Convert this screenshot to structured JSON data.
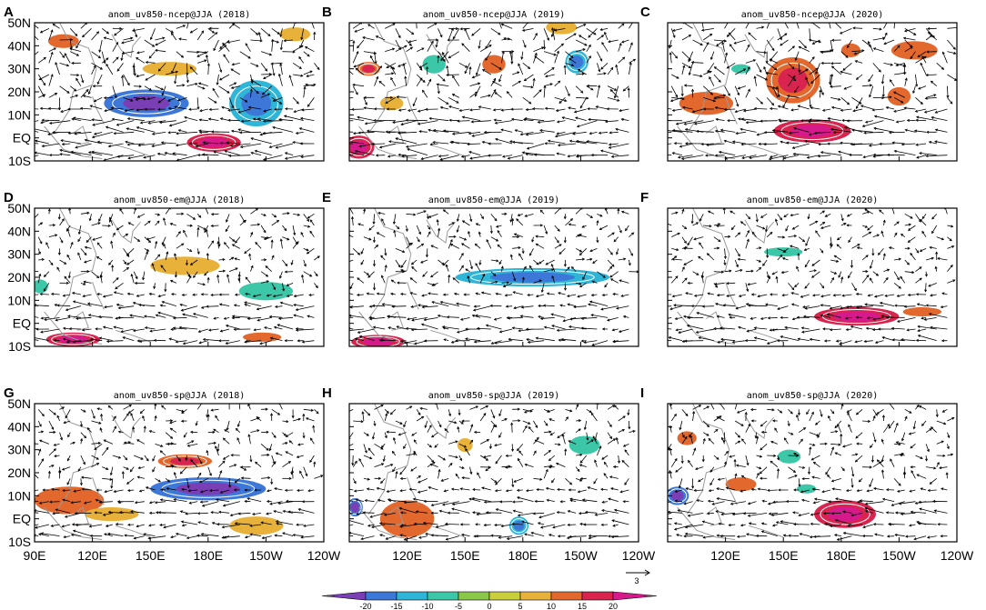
{
  "chart_data": {
    "type": "heatmap",
    "description_units": "850 hPa wind anomaly vectors with shaded anomaly field",
    "lat_labels": [
      "50N",
      "40N",
      "30N",
      "20N",
      "10N",
      "EQ",
      "10S"
    ],
    "lat_values": [
      50,
      40,
      30,
      20,
      10,
      0,
      -10
    ],
    "lon_labels_left": [
      "90E",
      "120E",
      "150E",
      "180E",
      "150W",
      "120W"
    ],
    "lon_labels_other": [
      "120E",
      "150E",
      "180E",
      "150W",
      "120W"
    ],
    "lon_values": [
      90,
      120,
      150,
      180,
      210,
      240
    ],
    "colorbar": {
      "ticks": [
        "-20",
        "-15",
        "-10",
        "-5",
        "0",
        "5",
        "10",
        "15",
        "20"
      ],
      "colors": [
        "#7a3fb5",
        "#3d78d8",
        "#2eb5d8",
        "#3cc8a8",
        "#8bc84a",
        "#c8cf3a",
        "#e8b23a",
        "#e2682e",
        "#d8244e",
        "#d61a8c"
      ]
    },
    "reference_vector": {
      "label": "3"
    },
    "panels": [
      {
        "letter": "A",
        "title": "anom_uv850-ncep@JJA (2018)",
        "dataset": "ncep",
        "year": 2018,
        "blobs": [
          {
            "lon": 148,
            "lat": 15,
            "rx": 22,
            "ry": 6,
            "v": -20
          },
          {
            "lon": 205,
            "lat": 15,
            "rx": 14,
            "ry": 10,
            "v": -12
          },
          {
            "lon": 160,
            "lat": 30,
            "rx": 14,
            "ry": 3,
            "v": 8
          },
          {
            "lon": 183,
            "lat": -2,
            "rx": 14,
            "ry": 4,
            "v": 15
          },
          {
            "lon": 225,
            "lat": 45,
            "rx": 8,
            "ry": 3,
            "v": 8
          },
          {
            "lon": 105,
            "lat": 42,
            "rx": 8,
            "ry": 3,
            "v": 10
          }
        ]
      },
      {
        "letter": "D",
        "title": "anom_uv850-em@JJA (2018)",
        "dataset": "em",
        "year": 2018,
        "blobs": [
          {
            "lon": 168,
            "lat": 25,
            "rx": 18,
            "ry": 4,
            "v": 8
          },
          {
            "lon": 210,
            "lat": 14,
            "rx": 14,
            "ry": 4,
            "v": -7
          },
          {
            "lon": 110,
            "lat": -7,
            "rx": 14,
            "ry": 3,
            "v": 16
          },
          {
            "lon": 208,
            "lat": -6,
            "rx": 10,
            "ry": 2,
            "v": 10
          },
          {
            "lon": 93,
            "lat": 16,
            "rx": 4,
            "ry": 3,
            "v": -7
          }
        ]
      },
      {
        "letter": "G",
        "title": "anom_uv850-sp@JJA (2018)",
        "dataset": "sp",
        "year": 2018,
        "blobs": [
          {
            "lon": 180,
            "lat": 13,
            "rx": 30,
            "ry": 5,
            "v": -18
          },
          {
            "lon": 168,
            "lat": 25,
            "rx": 14,
            "ry": 3,
            "v": 12
          },
          {
            "lon": 108,
            "lat": 8,
            "rx": 18,
            "ry": 6,
            "v": 11
          },
          {
            "lon": 205,
            "lat": -3,
            "rx": 14,
            "ry": 4,
            "v": 8
          },
          {
            "lon": 130,
            "lat": 2,
            "rx": 14,
            "ry": 3,
            "v": 8
          }
        ]
      },
      {
        "letter": "B",
        "title": "anom_uv850-ncep@JJA (2019)",
        "dataset": "ncep",
        "year": 2019,
        "blobs": [
          {
            "lon": 134,
            "lat": 32,
            "rx": 6,
            "ry": 4,
            "v": -10
          },
          {
            "lon": 208,
            "lat": 33,
            "rx": 6,
            "ry": 5,
            "v": -12
          },
          {
            "lon": 165,
            "lat": 32,
            "rx": 6,
            "ry": 4,
            "v": 10
          },
          {
            "lon": 95,
            "lat": -4,
            "rx": 8,
            "ry": 5,
            "v": 18
          },
          {
            "lon": 100,
            "lat": 30,
            "rx": 6,
            "ry": 3,
            "v": 12
          },
          {
            "lon": 200,
            "lat": 48,
            "rx": 8,
            "ry": 3,
            "v": 8
          },
          {
            "lon": 112,
            "lat": 15,
            "rx": 6,
            "ry": 3,
            "v": 8
          }
        ]
      },
      {
        "letter": "E",
        "title": "anom_uv850-em@JJA (2019)",
        "dataset": "em",
        "year": 2019,
        "blobs": [
          {
            "lon": 185,
            "lat": 20,
            "rx": 40,
            "ry": 4,
            "v": -12
          },
          {
            "lon": 105,
            "lat": -8,
            "rx": 14,
            "ry": 3,
            "v": 18
          }
        ]
      },
      {
        "letter": "H",
        "title": "anom_uv850-sp@JJA (2019)",
        "dataset": "sp",
        "year": 2019,
        "blobs": [
          {
            "lon": 120,
            "lat": 0,
            "rx": 14,
            "ry": 8,
            "v": 10
          },
          {
            "lon": 93,
            "lat": 5,
            "rx": 4,
            "ry": 4,
            "v": -20
          },
          {
            "lon": 178,
            "lat": -3,
            "rx": 5,
            "ry": 4,
            "v": -12
          },
          {
            "lon": 212,
            "lat": 32,
            "rx": 8,
            "ry": 4,
            "v": -8
          },
          {
            "lon": 150,
            "lat": 32,
            "rx": 4,
            "ry": 3,
            "v": 8
          }
        ]
      },
      {
        "letter": "C",
        "title": "anom_uv850-ncep@JJA (2020)",
        "dataset": "ncep",
        "year": 2020,
        "blobs": [
          {
            "lon": 165,
            "lat": 3,
            "rx": 20,
            "ry": 5,
            "v": 18
          },
          {
            "lon": 155,
            "lat": 25,
            "rx": 14,
            "ry": 10,
            "v": 13
          },
          {
            "lon": 110,
            "lat": 15,
            "rx": 14,
            "ry": 5,
            "v": 10
          },
          {
            "lon": 218,
            "lat": 38,
            "rx": 12,
            "ry": 4,
            "v": 10
          },
          {
            "lon": 185,
            "lat": 38,
            "rx": 5,
            "ry": 3,
            "v": 10
          },
          {
            "lon": 210,
            "lat": 18,
            "rx": 6,
            "ry": 4,
            "v": 10
          },
          {
            "lon": 128,
            "lat": 30,
            "rx": 5,
            "ry": 2,
            "v": -8
          }
        ]
      },
      {
        "letter": "F",
        "title": "anom_uv850-em@JJA (2020)",
        "dataset": "em",
        "year": 2020,
        "blobs": [
          {
            "lon": 188,
            "lat": 3,
            "rx": 22,
            "ry": 4,
            "v": 16
          },
          {
            "lon": 150,
            "lat": 31,
            "rx": 10,
            "ry": 2,
            "v": -8
          },
          {
            "lon": 222,
            "lat": 5,
            "rx": 10,
            "ry": 2,
            "v": 10
          }
        ]
      },
      {
        "letter": "I",
        "title": "anom_uv850-sp@JJA (2020)",
        "dataset": "sp",
        "year": 2020,
        "blobs": [
          {
            "lon": 182,
            "lat": 2,
            "rx": 16,
            "ry": 6,
            "v": 18
          },
          {
            "lon": 95,
            "lat": 10,
            "rx": 6,
            "ry": 4,
            "v": -18
          },
          {
            "lon": 153,
            "lat": 27,
            "rx": 6,
            "ry": 3,
            "v": -8
          },
          {
            "lon": 128,
            "lat": 15,
            "rx": 8,
            "ry": 3,
            "v": 10
          },
          {
            "lon": 100,
            "lat": 35,
            "rx": 5,
            "ry": 3,
            "v": 10
          },
          {
            "lon": 162,
            "lat": 13,
            "rx": 5,
            "ry": 2,
            "v": -6
          }
        ]
      }
    ]
  }
}
